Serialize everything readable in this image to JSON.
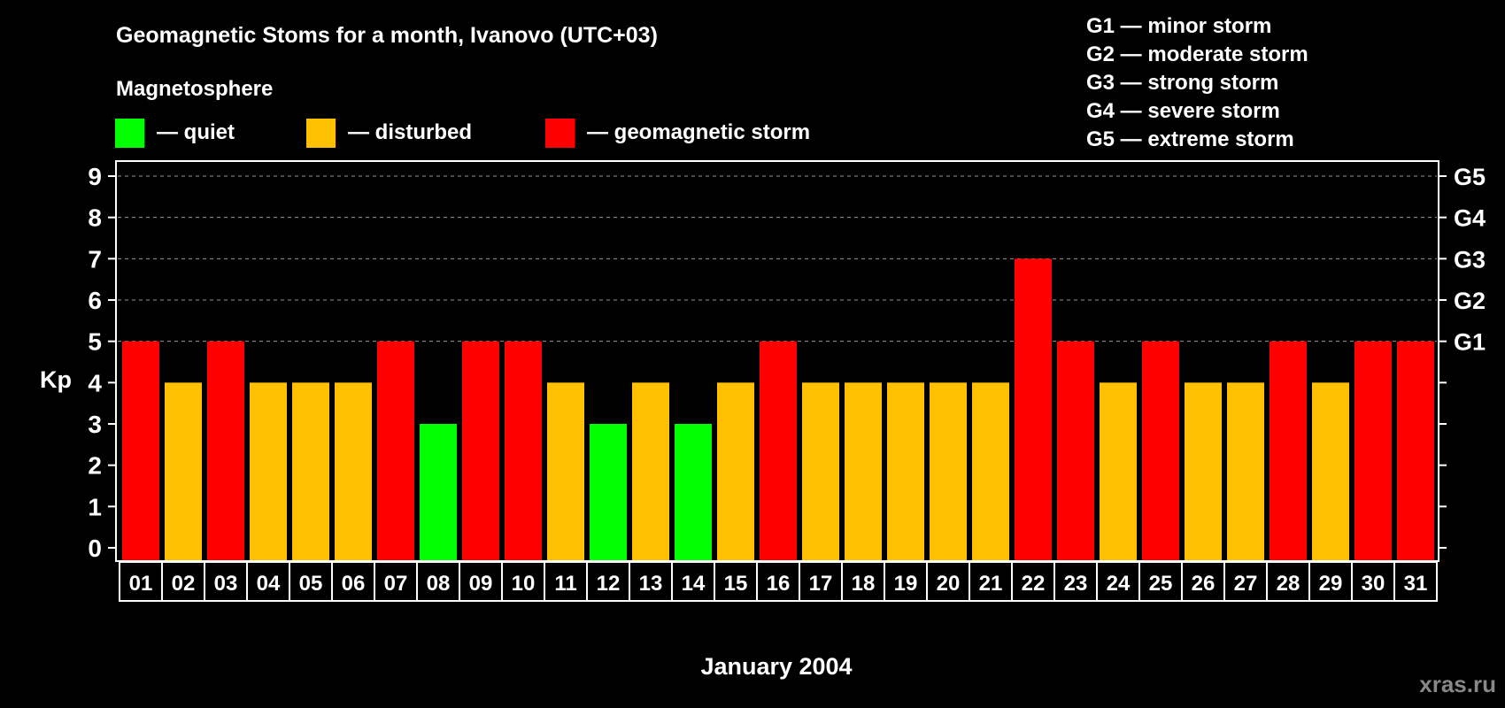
{
  "chart_data": {
    "type": "bar",
    "title": "Geomagnetic Stoms for a month, Ivanovo (UTC+03)",
    "legend_title": "Magnetosphere",
    "legend": [
      {
        "label": "— quiet",
        "color": "#00ff00"
      },
      {
        "label": "— disturbed",
        "color": "#ffc000"
      },
      {
        "label": "— geomagnetic storm",
        "color": "#ff0000"
      }
    ],
    "storm_scale": [
      "G1 — minor storm",
      "G2 — moderate storm",
      "G3 — strong storm",
      "G4 — severe storm",
      "G5 — extreme storm"
    ],
    "xlabel": "January 2004",
    "ylabel": "Kp",
    "ylim": [
      0,
      9
    ],
    "yticks": [
      0,
      1,
      2,
      3,
      4,
      5,
      6,
      7,
      8,
      9
    ],
    "right_ticks": [
      {
        "value": 5,
        "label": "G1"
      },
      {
        "value": 6,
        "label": "G2"
      },
      {
        "value": 7,
        "label": "G3"
      },
      {
        "value": 8,
        "label": "G4"
      },
      {
        "value": 9,
        "label": "G5"
      }
    ],
    "grid": "dashed, Kp 5-9",
    "categories": [
      "01",
      "02",
      "03",
      "04",
      "05",
      "06",
      "07",
      "08",
      "09",
      "10",
      "11",
      "12",
      "13",
      "14",
      "15",
      "16",
      "17",
      "18",
      "19",
      "20",
      "21",
      "22",
      "23",
      "24",
      "25",
      "26",
      "27",
      "28",
      "29",
      "30",
      "31"
    ],
    "values": [
      5,
      4,
      5,
      4,
      4,
      4,
      5,
      3,
      5,
      5,
      4,
      3,
      4,
      3,
      4,
      5,
      4,
      4,
      4,
      4,
      4,
      7,
      5,
      4,
      5,
      4,
      4,
      5,
      4,
      5,
      5
    ],
    "colors": {
      "quiet": "#00ff00",
      "disturbed": "#ffc000",
      "storm": "#ff0000"
    }
  },
  "watermark": "xras.ru"
}
